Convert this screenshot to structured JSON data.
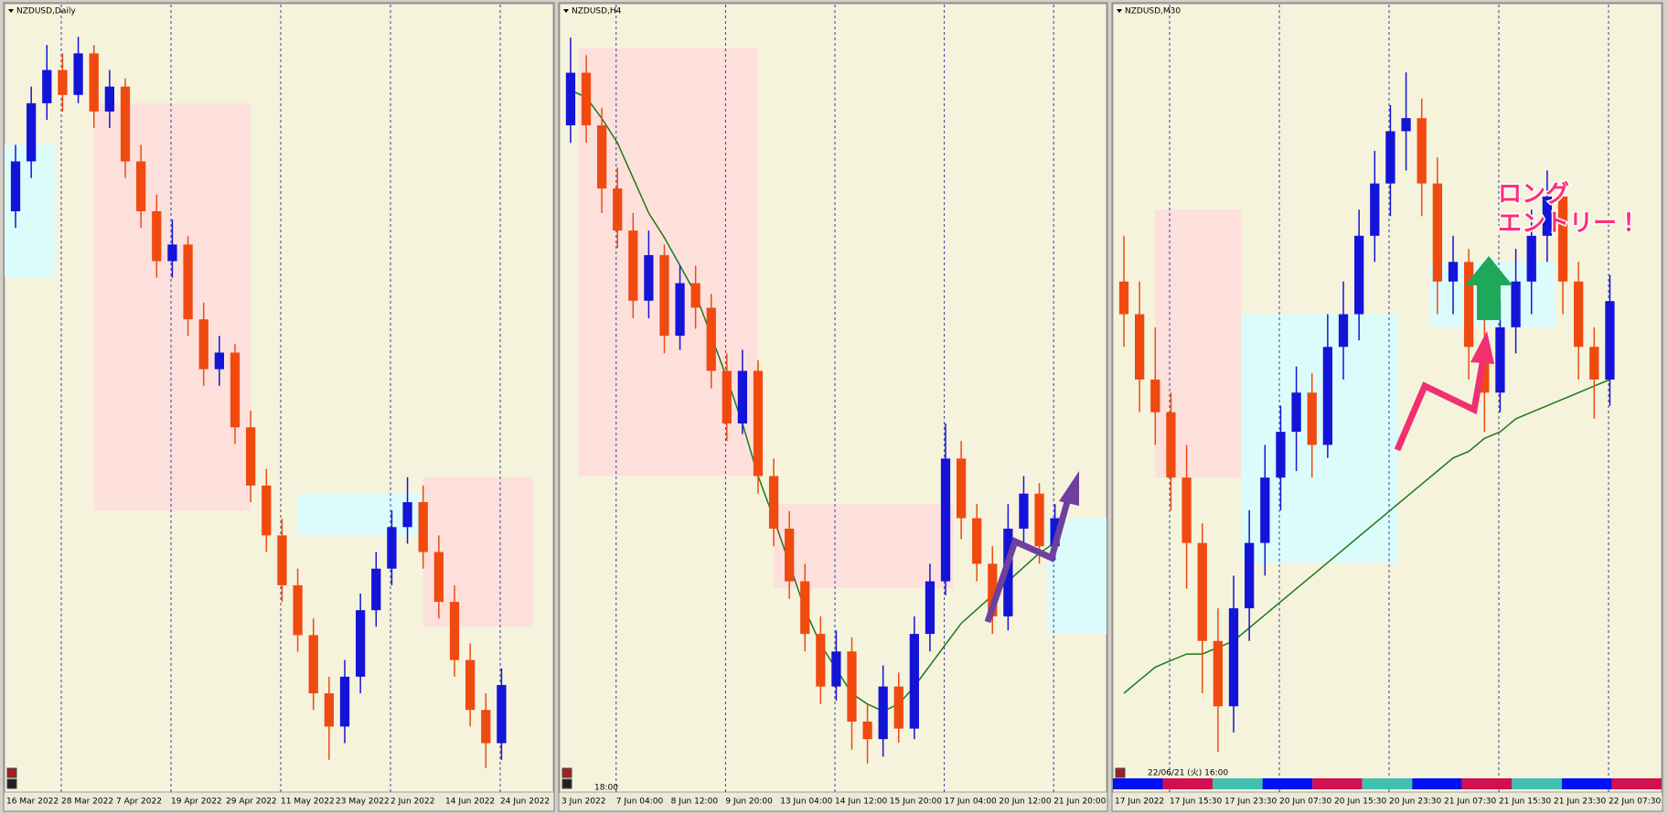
{
  "up_color": "#1414d8",
  "down_color": "#f04a10",
  "ma_color": "#1a7a1a",
  "panels": [
    {
      "title": "NZDUSD,Daily",
      "ylim": [
        0.615,
        0.707
      ],
      "candles": [
        [
          0.684,
          0.692,
          0.682,
          0.69
        ],
        [
          0.69,
          0.699,
          0.688,
          0.697
        ],
        [
          0.697,
          0.704,
          0.695,
          0.701
        ],
        [
          0.701,
          0.703,
          0.696,
          0.698
        ],
        [
          0.698,
          0.705,
          0.697,
          0.703
        ],
        [
          0.703,
          0.704,
          0.694,
          0.696
        ],
        [
          0.696,
          0.701,
          0.694,
          0.699
        ],
        [
          0.699,
          0.7,
          0.688,
          0.69
        ],
        [
          0.69,
          0.692,
          0.682,
          0.684
        ],
        [
          0.684,
          0.686,
          0.676,
          0.678
        ],
        [
          0.678,
          0.683,
          0.676,
          0.68
        ],
        [
          0.68,
          0.681,
          0.669,
          0.671
        ],
        [
          0.671,
          0.673,
          0.663,
          0.665
        ],
        [
          0.665,
          0.669,
          0.663,
          0.667
        ],
        [
          0.667,
          0.668,
          0.656,
          0.658
        ],
        [
          0.658,
          0.66,
          0.649,
          0.651
        ],
        [
          0.651,
          0.653,
          0.643,
          0.645
        ],
        [
          0.645,
          0.647,
          0.637,
          0.639
        ],
        [
          0.639,
          0.641,
          0.631,
          0.633
        ],
        [
          0.633,
          0.635,
          0.624,
          0.626
        ],
        [
          0.626,
          0.628,
          0.618,
          0.622
        ],
        [
          0.622,
          0.63,
          0.62,
          0.628
        ],
        [
          0.628,
          0.638,
          0.626,
          0.636
        ],
        [
          0.636,
          0.643,
          0.634,
          0.641
        ],
        [
          0.641,
          0.648,
          0.639,
          0.646
        ],
        [
          0.646,
          0.652,
          0.644,
          0.649
        ],
        [
          0.649,
          0.651,
          0.641,
          0.643
        ],
        [
          0.643,
          0.645,
          0.635,
          0.637
        ],
        [
          0.637,
          0.639,
          0.628,
          0.63
        ],
        [
          0.63,
          0.632,
          0.622,
          0.624
        ],
        [
          0.624,
          0.626,
          0.617,
          0.62
        ],
        [
          0.62,
          0.629,
          0.618,
          0.627
        ]
      ],
      "zones": [
        {
          "x": [
            -1,
            2.5
          ],
          "y": [
            0.676,
            0.692
          ],
          "color": "#dcfcfc"
        },
        {
          "x": [
            5,
            15
          ],
          "y": [
            0.648,
            0.697
          ],
          "color": "#fde0dc"
        },
        {
          "x": [
            18,
            26
          ],
          "y": [
            0.645,
            0.65
          ],
          "color": "#dcfcfc"
        },
        {
          "x": [
            26,
            33
          ],
          "y": [
            0.634,
            0.652
          ],
          "color": "#fde0dc"
        }
      ],
      "x_labels": [
        "16 Mar 2022",
        "28 Mar 2022",
        "7 Apr 2022",
        "19 Apr 2022",
        "29 Apr 2022",
        "11 May 2022",
        "23 May 2022",
        "2 Jun 2022",
        "14 Jun 2022",
        "24 Jun 2022"
      ]
    },
    {
      "title": "NZDUSD,H4",
      "ylim": [
        0.6182,
        0.64
      ],
      "time_label": "18:00",
      "candles": [
        [
          0.637,
          0.6395,
          0.6365,
          0.6385
        ],
        [
          0.6385,
          0.639,
          0.6365,
          0.637
        ],
        [
          0.637,
          0.6375,
          0.6345,
          0.6352
        ],
        [
          0.6352,
          0.6358,
          0.6335,
          0.634
        ],
        [
          0.634,
          0.6345,
          0.6315,
          0.632
        ],
        [
          0.632,
          0.634,
          0.6315,
          0.6333
        ],
        [
          0.6333,
          0.6336,
          0.6305,
          0.631
        ],
        [
          0.631,
          0.633,
          0.6306,
          0.6325
        ],
        [
          0.6325,
          0.633,
          0.6312,
          0.6318
        ],
        [
          0.6318,
          0.6322,
          0.6295,
          0.63
        ],
        [
          0.63,
          0.6305,
          0.628,
          0.6285
        ],
        [
          0.6285,
          0.6306,
          0.6282,
          0.63
        ],
        [
          0.63,
          0.6303,
          0.6265,
          0.627
        ],
        [
          0.627,
          0.6275,
          0.625,
          0.6255
        ],
        [
          0.6255,
          0.626,
          0.6235,
          0.624
        ],
        [
          0.624,
          0.6245,
          0.622,
          0.6225
        ],
        [
          0.6225,
          0.623,
          0.6205,
          0.621
        ],
        [
          0.621,
          0.6226,
          0.6206,
          0.622
        ],
        [
          0.622,
          0.6224,
          0.6192,
          0.62
        ],
        [
          0.62,
          0.6205,
          0.6188,
          0.6195
        ],
        [
          0.6195,
          0.6216,
          0.619,
          0.621
        ],
        [
          0.621,
          0.6214,
          0.6194,
          0.6198
        ],
        [
          0.6198,
          0.623,
          0.6195,
          0.6225
        ],
        [
          0.6225,
          0.6245,
          0.622,
          0.624
        ],
        [
          0.624,
          0.6285,
          0.6236,
          0.6275
        ],
        [
          0.6275,
          0.628,
          0.6252,
          0.6258
        ],
        [
          0.6258,
          0.6262,
          0.624,
          0.6245
        ],
        [
          0.6245,
          0.625,
          0.6225,
          0.623
        ],
        [
          0.623,
          0.6262,
          0.6226,
          0.6255
        ],
        [
          0.6255,
          0.627,
          0.625,
          0.6265
        ],
        [
          0.6265,
          0.6268,
          0.6245,
          0.625
        ],
        [
          0.625,
          0.6262,
          0.6246,
          0.6258
        ]
      ],
      "ma": [
        0.638,
        0.6378,
        0.6372,
        0.6365,
        0.6355,
        0.6345,
        0.6338,
        0.633,
        0.6322,
        0.631,
        0.6298,
        0.6285,
        0.627,
        0.6258,
        0.6245,
        0.6232,
        0.6222,
        0.6215,
        0.6208,
        0.6205,
        0.6203,
        0.6205,
        0.621,
        0.6216,
        0.6222,
        0.6228,
        0.6232,
        0.6236,
        0.624,
        0.6244,
        0.6248,
        0.6251
      ],
      "zones": [
        {
          "x": [
            0.5,
            12
          ],
          "y": [
            0.627,
            0.6392
          ],
          "color": "#fde0dc"
        },
        {
          "x": [
            13,
            24.5
          ],
          "y": [
            0.6238,
            0.6262
          ],
          "color": "#fde0dc"
        },
        {
          "x": [
            30.5,
            35
          ],
          "y": [
            0.6225,
            0.6258
          ],
          "color": "#dcfcfc"
        }
      ],
      "x_labels": [
        "3 Jun 2022",
        "7 Jun 04:00",
        "8 Jun 12:00",
        "9 Jun 20:00",
        "13 Jun 04:00",
        "14 Jun 12:00",
        "15 Jun 20:00",
        "17 Jun 04:00",
        "20 Jun 12:00",
        "21 Jun 20:00"
      ]
    },
    {
      "title": "NZDUSD,M30",
      "ylim": [
        0.6178,
        0.6295
      ],
      "timestamp": "22/06/21 (火) 16:00",
      "annotation": [
        "ロング",
        "エントリー！"
      ],
      "candles": [
        [
          0.6255,
          0.6262,
          0.6245,
          0.625
        ],
        [
          0.625,
          0.6255,
          0.6235,
          0.624
        ],
        [
          0.624,
          0.6248,
          0.623,
          0.6235
        ],
        [
          0.6235,
          0.6238,
          0.622,
          0.6225
        ],
        [
          0.6225,
          0.623,
          0.6208,
          0.6215
        ],
        [
          0.6215,
          0.6218,
          0.6192,
          0.62
        ],
        [
          0.62,
          0.6205,
          0.6183,
          0.619
        ],
        [
          0.619,
          0.621,
          0.6186,
          0.6205
        ],
        [
          0.6205,
          0.622,
          0.62,
          0.6215
        ],
        [
          0.6215,
          0.623,
          0.621,
          0.6225
        ],
        [
          0.6225,
          0.6236,
          0.622,
          0.6232
        ],
        [
          0.6232,
          0.6242,
          0.6226,
          0.6238
        ],
        [
          0.6238,
          0.6241,
          0.6225,
          0.623
        ],
        [
          0.623,
          0.625,
          0.6228,
          0.6245
        ],
        [
          0.6245,
          0.6255,
          0.624,
          0.625
        ],
        [
          0.625,
          0.6266,
          0.6246,
          0.6262
        ],
        [
          0.6262,
          0.6275,
          0.6258,
          0.627
        ],
        [
          0.627,
          0.6282,
          0.6265,
          0.6278
        ],
        [
          0.6278,
          0.6287,
          0.6272,
          0.628
        ],
        [
          0.628,
          0.6283,
          0.6265,
          0.627
        ],
        [
          0.627,
          0.6274,
          0.625,
          0.6255
        ],
        [
          0.6255,
          0.6262,
          0.625,
          0.6258
        ],
        [
          0.6258,
          0.626,
          0.624,
          0.6245
        ],
        [
          0.6245,
          0.625,
          0.6232,
          0.6238
        ],
        [
          0.6238,
          0.6252,
          0.6235,
          0.6248
        ],
        [
          0.6248,
          0.626,
          0.6244,
          0.6255
        ],
        [
          0.6255,
          0.6266,
          0.625,
          0.6262
        ],
        [
          0.6262,
          0.6272,
          0.6258,
          0.6268
        ],
        [
          0.6268,
          0.627,
          0.625,
          0.6255
        ],
        [
          0.6255,
          0.6258,
          0.624,
          0.6245
        ],
        [
          0.6245,
          0.6248,
          0.6234,
          0.624
        ],
        [
          0.624,
          0.6256,
          0.6236,
          0.6252
        ]
      ],
      "ma": [
        0.6192,
        0.6194,
        0.6196,
        0.6197,
        0.6198,
        0.6198,
        0.6199,
        0.62,
        0.6202,
        0.6204,
        0.6206,
        0.6208,
        0.621,
        0.6212,
        0.6214,
        0.6216,
        0.6218,
        0.622,
        0.6222,
        0.6224,
        0.6226,
        0.6228,
        0.6229,
        0.6231,
        0.6232,
        0.6234,
        0.6235,
        0.6236,
        0.6237,
        0.6238,
        0.6239,
        0.624
      ],
      "zones": [
        {
          "x": [
            2,
            7.5
          ],
          "y": [
            0.6225,
            0.6266
          ],
          "color": "#fde0dc"
        },
        {
          "x": [
            7.5,
            17.5
          ],
          "y": [
            0.6212,
            0.625
          ],
          "color": "#dcfcfc"
        },
        {
          "x": [
            19.5,
            27.5
          ],
          "y": [
            0.6248,
            0.6258
          ],
          "color": "#dcfcfc"
        }
      ],
      "x_labels": [
        "17 Jun 2022",
        "17 Jun 15:30",
        "17 Jun 23:30",
        "20 Jun 07:30",
        "20 Jun 15:30",
        "20 Jun 23:30",
        "21 Jun 07:30",
        "21 Jun 15:30",
        "21 Jun 23:30",
        "22 Jun 07:30"
      ]
    }
  ]
}
